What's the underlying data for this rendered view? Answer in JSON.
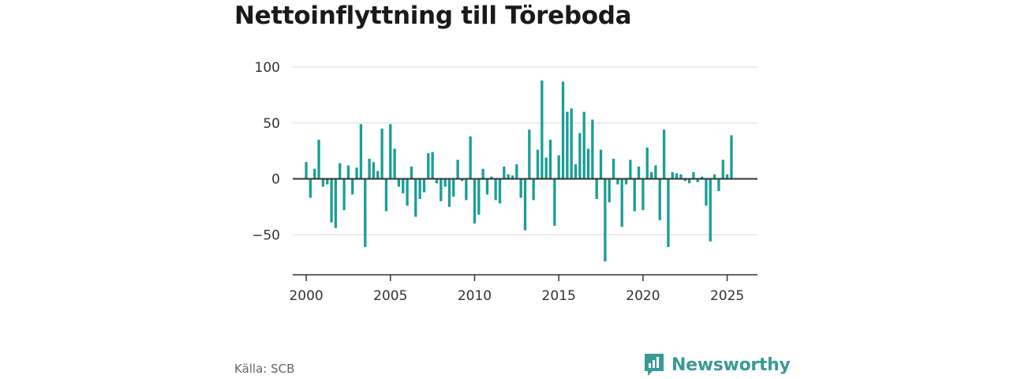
{
  "chart_data": {
    "type": "bar",
    "title": "Nettoinflyttning till Töreboda",
    "xlabel": "",
    "ylabel": "",
    "ylim": [
      -85,
      100
    ],
    "xlim": [
      1999.2,
      2026.8
    ],
    "y_ticks": [
      100,
      50,
      0,
      -50
    ],
    "y_tick_labels": [
      "100",
      "50",
      "0",
      "−50"
    ],
    "x_ticks": [
      2000,
      2005,
      2010,
      2015,
      2020,
      2025
    ],
    "x_tick_labels": [
      "2000",
      "2005",
      "2010",
      "2015",
      "2020",
      "2025"
    ],
    "grid": true,
    "bar_color": "#1a9e96",
    "x": [
      2000.0,
      2000.25,
      2000.5,
      2000.75,
      2001.0,
      2001.25,
      2001.5,
      2001.75,
      2002.0,
      2002.25,
      2002.5,
      2002.75,
      2003.0,
      2003.25,
      2003.5,
      2003.75,
      2004.0,
      2004.25,
      2004.5,
      2004.75,
      2005.0,
      2005.25,
      2005.5,
      2005.75,
      2006.0,
      2006.25,
      2006.5,
      2006.75,
      2007.0,
      2007.25,
      2007.5,
      2007.75,
      2008.0,
      2008.25,
      2008.5,
      2008.75,
      2009.0,
      2009.25,
      2009.5,
      2009.75,
      2010.0,
      2010.25,
      2010.5,
      2010.75,
      2011.0,
      2011.25,
      2011.5,
      2011.75,
      2012.0,
      2012.25,
      2012.5,
      2012.75,
      2013.0,
      2013.25,
      2013.5,
      2013.75,
      2014.0,
      2014.25,
      2014.5,
      2014.75,
      2015.0,
      2015.25,
      2015.5,
      2015.75,
      2016.0,
      2016.25,
      2016.5,
      2016.75,
      2017.0,
      2017.25,
      2017.5,
      2017.75,
      2018.0,
      2018.25,
      2018.5,
      2018.75,
      2019.0,
      2019.25,
      2019.5,
      2019.75,
      2020.0,
      2020.25,
      2020.5,
      2020.75,
      2021.0,
      2021.25,
      2021.5,
      2021.75,
      2022.0,
      2022.25,
      2022.5,
      2022.75,
      2023.0,
      2023.25,
      2023.5,
      2023.75,
      2024.0,
      2024.25,
      2024.5,
      2024.75,
      2025.0,
      2025.25
    ],
    "values": [
      15,
      -17,
      9,
      35,
      -7,
      -5,
      -39,
      -44,
      14,
      -28,
      12,
      -14,
      10,
      49,
      -61,
      18,
      15,
      7,
      45,
      -29,
      49,
      27,
      -7,
      -13,
      -24,
      11,
      -34,
      -18,
      -12,
      23,
      24,
      -4,
      -20,
      -7,
      -25,
      -16,
      17,
      -2,
      -19,
      38,
      -40,
      -32,
      9,
      -14,
      2,
      -19,
      -22,
      11,
      4,
      3,
      13,
      -17,
      -46,
      44,
      -19,
      26,
      88,
      19,
      35,
      -42,
      21,
      87,
      60,
      63,
      13,
      41,
      60,
      27,
      53,
      -18,
      26,
      -74,
      -21,
      18,
      -5,
      -43,
      -5,
      17,
      -29,
      11,
      -28,
      28,
      6,
      12,
      -37,
      44,
      -61,
      6,
      5,
      4,
      -2,
      -4,
      6,
      -3,
      2,
      -24,
      -56,
      4,
      -11,
      17,
      4,
      39
    ]
  },
  "source": "Källa: SCB",
  "brand": {
    "name": "Newsworthy",
    "color": "#3a9b95"
  }
}
